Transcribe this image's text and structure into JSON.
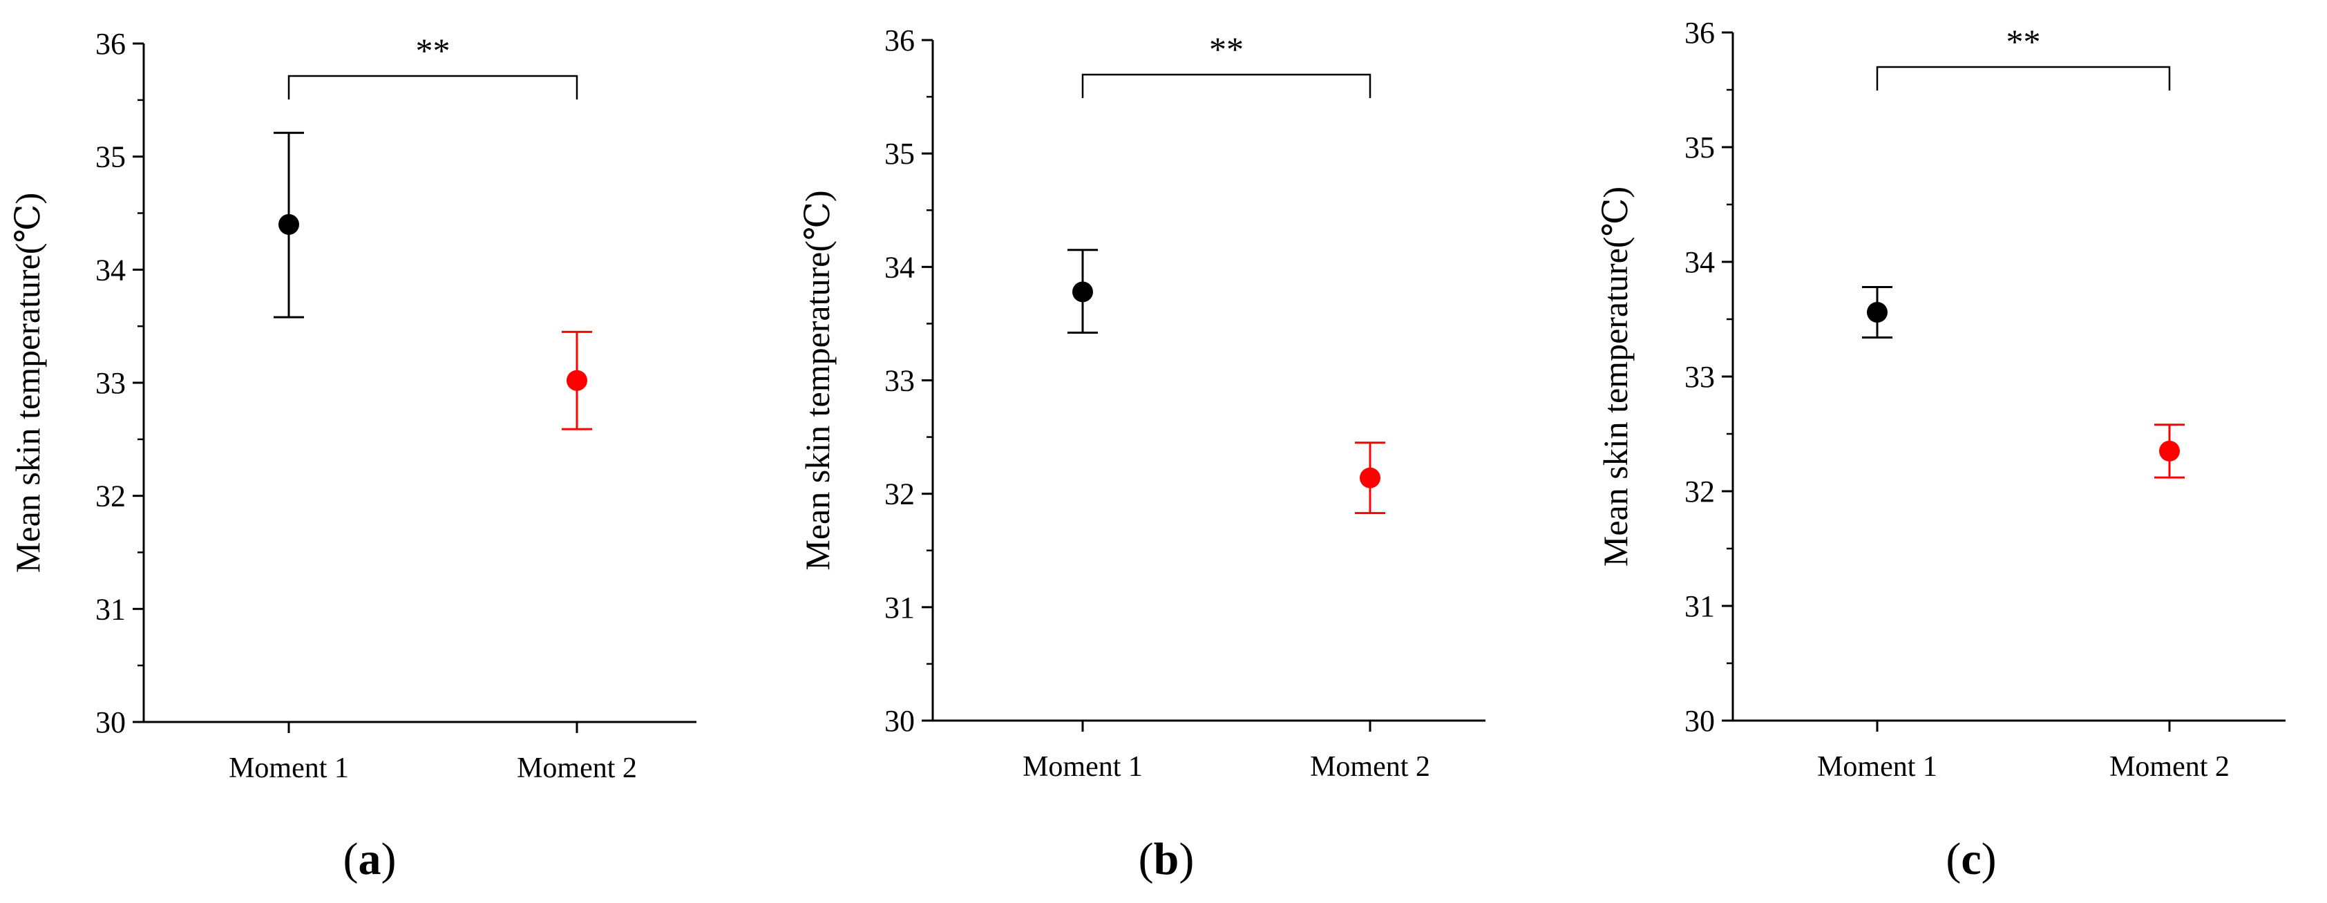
{
  "figure": {
    "panels": [
      {
        "label_open": "(",
        "label_letter": "a",
        "label_close": ")"
      },
      {
        "label_open": "(",
        "label_letter": "b",
        "label_close": ")"
      },
      {
        "label_open": "(",
        "label_letter": "c",
        "label_close": ")"
      }
    ]
  },
  "colors": {
    "moment1": "#000000",
    "moment2": "#ff0000",
    "axis": "#000000"
  },
  "chart_data": [
    {
      "type": "scatter",
      "categories": [
        "Moment 1",
        "Moment 2"
      ],
      "ylabel": "Mean skin temperature(℃)",
      "ylim": [
        30,
        36
      ],
      "yticks": [
        "30",
        "31",
        "32",
        "33",
        "34",
        "35",
        "36"
      ],
      "significance": "**",
      "series": [
        {
          "category": "Moment 1",
          "mean": 34.4,
          "lower": 33.58,
          "upper": 35.21,
          "color": "#000000"
        },
        {
          "category": "Moment 2",
          "mean": 33.02,
          "lower": 32.59,
          "upper": 33.45,
          "color": "#ff0000"
        }
      ]
    },
    {
      "type": "scatter",
      "categories": [
        "Moment 1",
        "Moment 2"
      ],
      "ylabel": "Mean skin temperature(℃)",
      "ylim": [
        30,
        36
      ],
      "yticks": [
        "30",
        "31",
        "32",
        "33",
        "34",
        "35",
        "36"
      ],
      "significance": "**",
      "series": [
        {
          "category": "Moment 1",
          "mean": 33.78,
          "lower": 33.42,
          "upper": 34.15,
          "color": "#000000"
        },
        {
          "category": "Moment 2",
          "mean": 32.14,
          "lower": 31.83,
          "upper": 32.45,
          "color": "#ff0000"
        }
      ]
    },
    {
      "type": "scatter",
      "categories": [
        "Moment 1",
        "Moment 2"
      ],
      "ylabel": "Mean skin temperature(℃)",
      "ylim": [
        30,
        36
      ],
      "yticks": [
        "30",
        "31",
        "32",
        "33",
        "34",
        "35",
        "36"
      ],
      "significance": "**",
      "series": [
        {
          "category": "Moment 1",
          "mean": 33.56,
          "lower": 33.34,
          "upper": 33.78,
          "color": "#000000"
        },
        {
          "category": "Moment 2",
          "mean": 32.35,
          "lower": 32.12,
          "upper": 32.58,
          "color": "#ff0000"
        }
      ]
    }
  ]
}
